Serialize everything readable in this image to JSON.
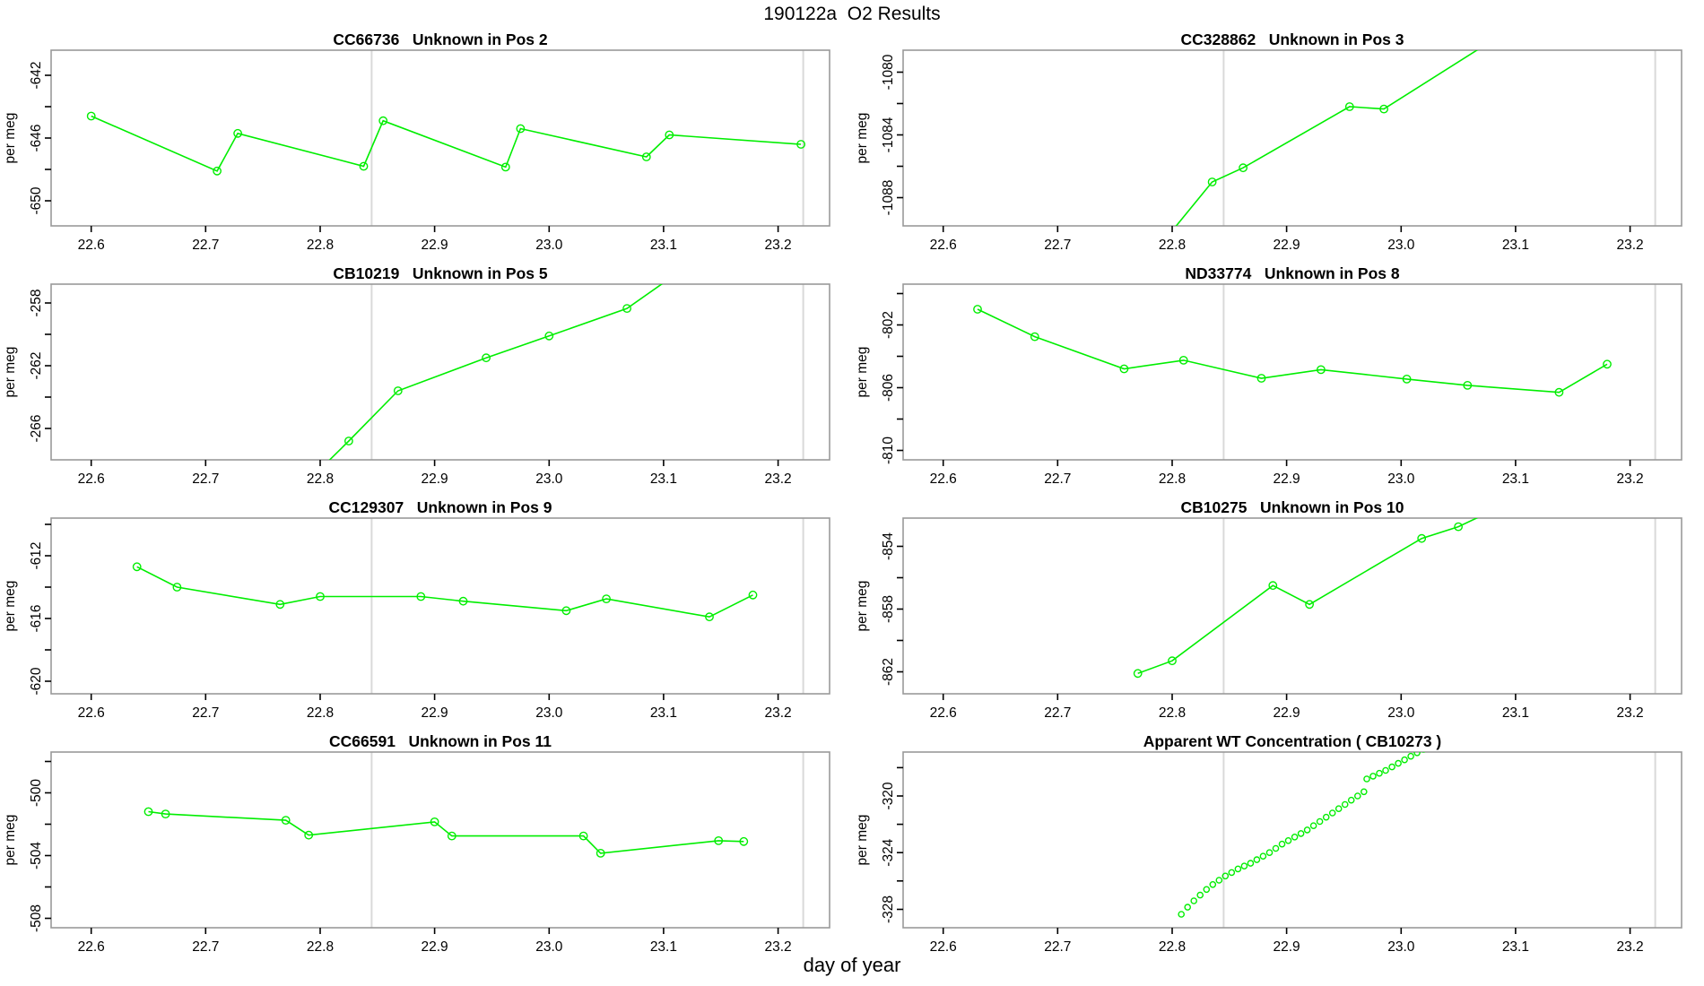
{
  "page_title": "190122a  O2 Results",
  "xlabel": "day of year",
  "colors": {
    "series": "#00EE00",
    "ref_line": "#D9D9D9",
    "box_border": "#999999",
    "tick": "#000000"
  },
  "axis": {
    "xlim": [
      22.565,
      23.245
    ],
    "x_tick_values": [
      22.6,
      22.7,
      22.8,
      22.9,
      23.0,
      23.1,
      23.2
    ],
    "x_tick_labels": [
      "22.6",
      "22.7",
      "22.8",
      "22.9",
      "23.0",
      "23.1",
      "23.2"
    ],
    "ref_lines": [
      22.845,
      23.222
    ]
  },
  "chart_data": [
    {
      "type": "line",
      "title": "CC66736   Unknown in Pos 2",
      "ylabel": "per meg",
      "ylim": [
        -651.6,
        -640.4
      ],
      "yticks": [
        [
          -642,
          "-642"
        ],
        [
          -644,
          ""
        ],
        [
          -646,
          "-646"
        ],
        [
          -648,
          ""
        ],
        [
          -650,
          "-650"
        ]
      ],
      "line": true,
      "marker_r": 4.2,
      "points": [
        [
          22.6,
          -644.6
        ],
        [
          22.71,
          -648.1
        ],
        [
          22.728,
          -645.7
        ],
        [
          22.838,
          -647.8
        ],
        [
          22.855,
          -644.9
        ],
        [
          22.962,
          -647.85
        ],
        [
          22.975,
          -645.4
        ],
        [
          23.085,
          -647.2
        ],
        [
          23.105,
          -645.8
        ],
        [
          23.22,
          -646.4
        ]
      ]
    },
    {
      "type": "line",
      "title": "CC328862   Unknown in Pos 3",
      "ylabel": "per meg",
      "ylim": [
        -1089.8,
        -1078.6
      ],
      "yticks": [
        [
          -1080,
          "-1080"
        ],
        [
          -1082,
          ""
        ],
        [
          -1084,
          "-1084"
        ],
        [
          -1086,
          ""
        ],
        [
          -1088,
          "-1088"
        ]
      ],
      "line": true,
      "marker_r": 4.2,
      "points": [
        [
          22.798,
          -1090.3
        ],
        [
          22.835,
          -1087.0
        ],
        [
          22.862,
          -1086.1
        ],
        [
          22.955,
          -1082.2
        ],
        [
          22.985,
          -1082.35
        ],
        [
          23.09,
          -1077.5
        ]
      ]
    },
    {
      "type": "line",
      "title": "CB10219   Unknown in Pos 5",
      "ylabel": "per meg",
      "ylim": [
        -268.0,
        -256.8
      ],
      "yticks": [
        [
          -258,
          "-258"
        ],
        [
          -260,
          ""
        ],
        [
          -262,
          "-262"
        ],
        [
          -264,
          ""
        ],
        [
          -266,
          "-266"
        ]
      ],
      "line": true,
      "marker_r": 4.2,
      "points": [
        [
          22.8,
          -268.6
        ],
        [
          22.825,
          -266.8
        ],
        [
          22.868,
          -263.6
        ],
        [
          22.945,
          -261.5
        ],
        [
          23.0,
          -260.1
        ],
        [
          23.068,
          -258.35
        ],
        [
          23.11,
          -256.2
        ]
      ]
    },
    {
      "type": "line",
      "title": "ND33774   Unknown in Pos 8",
      "ylabel": "per meg",
      "ylim": [
        -810.6,
        -799.4
      ],
      "yticks": [
        [
          -800,
          ""
        ],
        [
          -802,
          "-802"
        ],
        [
          -804,
          ""
        ],
        [
          -806,
          "-806"
        ],
        [
          -808,
          ""
        ],
        [
          -810,
          "-810"
        ]
      ],
      "line": true,
      "marker_r": 4.2,
      "points": [
        [
          22.63,
          -801.0
        ],
        [
          22.68,
          -802.75
        ],
        [
          22.758,
          -804.8
        ],
        [
          22.81,
          -804.25
        ],
        [
          22.878,
          -805.4
        ],
        [
          22.93,
          -804.85
        ],
        [
          23.005,
          -805.45
        ],
        [
          23.058,
          -805.85
        ],
        [
          23.138,
          -806.3
        ],
        [
          23.18,
          -804.5
        ]
      ]
    },
    {
      "type": "line",
      "title": "CC129307   Unknown in Pos 9",
      "ylabel": "per meg",
      "ylim": [
        -620.8,
        -609.6
      ],
      "yticks": [
        [
          -610,
          ""
        ],
        [
          -612,
          "-612"
        ],
        [
          -614,
          ""
        ],
        [
          -616,
          "-616"
        ],
        [
          -618,
          ""
        ],
        [
          -620,
          "-620"
        ]
      ],
      "line": true,
      "marker_r": 4.2,
      "points": [
        [
          22.64,
          -612.7
        ],
        [
          22.675,
          -614.0
        ],
        [
          22.765,
          -615.1
        ],
        [
          22.8,
          -614.6
        ],
        [
          22.888,
          -614.6
        ],
        [
          22.925,
          -614.9
        ],
        [
          23.015,
          -615.5
        ],
        [
          23.05,
          -614.75
        ],
        [
          23.14,
          -615.9
        ],
        [
          23.178,
          -614.5
        ]
      ]
    },
    {
      "type": "line",
      "title": "CB10275   Unknown in Pos 10",
      "ylabel": "per meg",
      "ylim": [
        -863.4,
        -852.2
      ],
      "yticks": [
        [
          -854,
          "-854"
        ],
        [
          -856,
          ""
        ],
        [
          -858,
          "-858"
        ],
        [
          -860,
          ""
        ],
        [
          -862,
          "-862"
        ]
      ],
      "line": true,
      "marker_r": 4.2,
      "points": [
        [
          22.77,
          -862.1
        ],
        [
          22.8,
          -861.3
        ],
        [
          22.888,
          -856.5
        ],
        [
          22.92,
          -857.7
        ],
        [
          23.018,
          -853.5
        ],
        [
          23.05,
          -852.75
        ],
        [
          23.095,
          -851.2
        ]
      ]
    },
    {
      "type": "line",
      "title": "CC66591   Unknown in Pos 11",
      "ylabel": "per meg",
      "ylim": [
        -508.6,
        -497.4
      ],
      "yticks": [
        [
          -498,
          ""
        ],
        [
          -500,
          "-500"
        ],
        [
          -502,
          ""
        ],
        [
          -504,
          "-504"
        ],
        [
          -506,
          ""
        ],
        [
          -508,
          "-508"
        ]
      ],
      "line": true,
      "marker_r": 4.2,
      "points": [
        [
          22.65,
          -501.2
        ],
        [
          22.665,
          -501.35
        ],
        [
          22.77,
          -501.75
        ],
        [
          22.79,
          -502.7
        ],
        [
          22.9,
          -501.85
        ],
        [
          22.915,
          -502.75
        ],
        [
          23.03,
          -502.75
        ],
        [
          23.045,
          -503.85
        ],
        [
          23.148,
          -503.05
        ],
        [
          23.17,
          -503.1
        ]
      ]
    },
    {
      "type": "scatter",
      "title": "Apparent WT Concentration ( CB10273 )",
      "ylabel": "per meg",
      "ylim": [
        -329.3,
        -316.9
      ],
      "yticks": [
        [
          -318,
          ""
        ],
        [
          -320,
          "-320"
        ],
        [
          -322,
          ""
        ],
        [
          -324,
          "-324"
        ],
        [
          -326,
          ""
        ],
        [
          -328,
          "-328"
        ]
      ],
      "line": false,
      "marker_r": 3.1,
      "points": [
        [
          22.808,
          -328.35
        ],
        [
          22.8135,
          -327.85
        ],
        [
          22.819,
          -327.4
        ],
        [
          22.8245,
          -327.0
        ],
        [
          22.83,
          -326.6
        ],
        [
          22.8355,
          -326.25
        ],
        [
          22.841,
          -325.95
        ],
        [
          22.8465,
          -325.65
        ],
        [
          22.852,
          -325.4
        ],
        [
          22.8575,
          -325.15
        ],
        [
          22.863,
          -324.95
        ],
        [
          22.8685,
          -324.75
        ],
        [
          22.874,
          -324.5
        ],
        [
          22.8795,
          -324.25
        ],
        [
          22.885,
          -324.0
        ],
        [
          22.8905,
          -323.7
        ],
        [
          22.896,
          -323.4
        ],
        [
          22.9015,
          -323.15
        ],
        [
          22.907,
          -322.9
        ],
        [
          22.9125,
          -322.65
        ],
        [
          22.918,
          -322.4
        ],
        [
          22.9235,
          -322.1
        ],
        [
          22.929,
          -321.8
        ],
        [
          22.9345,
          -321.5
        ],
        [
          22.94,
          -321.2
        ],
        [
          22.9455,
          -320.9
        ],
        [
          22.951,
          -320.6
        ],
        [
          22.9565,
          -320.3
        ],
        [
          22.962,
          -320.0
        ],
        [
          22.9675,
          -319.7
        ],
        [
          22.97,
          -318.8
        ],
        [
          22.9755,
          -318.6
        ],
        [
          22.981,
          -318.4
        ],
        [
          22.9865,
          -318.2
        ],
        [
          22.992,
          -317.95
        ],
        [
          22.9975,
          -317.7
        ],
        [
          23.003,
          -317.45
        ],
        [
          23.0085,
          -317.2
        ],
        [
          23.014,
          -316.95
        ],
        [
          23.0195,
          -316.7
        ],
        [
          23.025,
          -316.45
        ]
      ]
    }
  ]
}
